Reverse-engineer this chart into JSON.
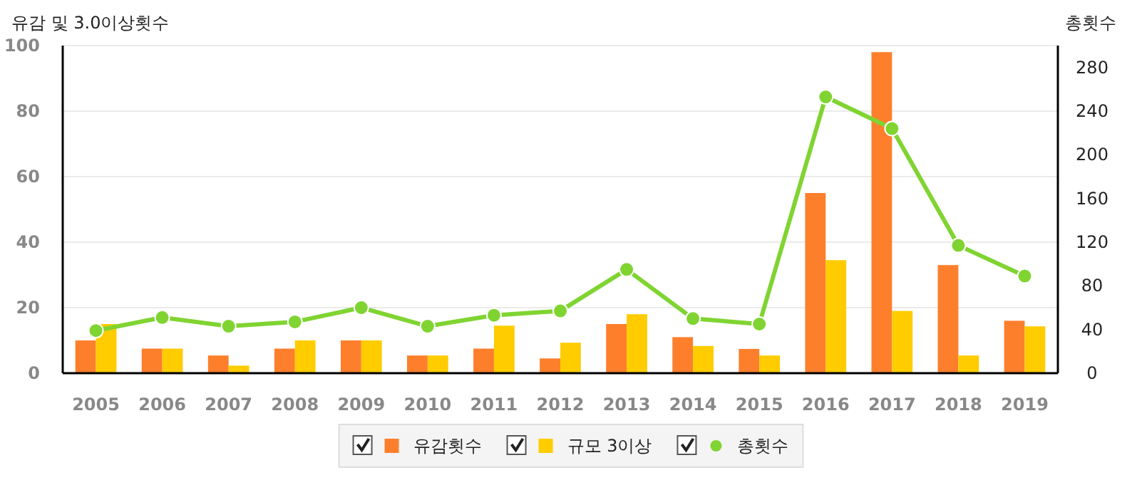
{
  "chart_data": {
    "type": "bar",
    "ylabel": "유감 및 3.0이상횟수",
    "y2label": "총횟수",
    "categories": [
      "2005",
      "2006",
      "2007",
      "2008",
      "2009",
      "2010",
      "2011",
      "2012",
      "2013",
      "2014",
      "2015",
      "2016",
      "2017",
      "2018",
      "2019"
    ],
    "series": [
      {
        "name": "유감횟수",
        "color": "#fd7f2c",
        "values": [
          10,
          7.5,
          5.4,
          7.5,
          10,
          5.4,
          7.5,
          4.5,
          15,
          11,
          7.4,
          55,
          98,
          33,
          16
        ]
      },
      {
        "name": "규모 3이상",
        "color": "#ffcc00",
        "values": [
          15,
          7.5,
          2.3,
          10,
          10,
          5.4,
          14.5,
          9.3,
          18,
          8.3,
          5.4,
          34.5,
          19,
          5.4,
          14.3
        ]
      },
      {
        "name": "총횟수",
        "type": "line",
        "axis": "y2",
        "color": "#80d432",
        "marker": "circle",
        "values": [
          39,
          51,
          43,
          47,
          60,
          43,
          53,
          57,
          95,
          50,
          45,
          253,
          224,
          117,
          89
        ]
      }
    ],
    "ylim": [
      0,
      100
    ],
    "yticks": [
      0,
      20,
      40,
      60,
      80,
      100
    ],
    "y2lim": [
      0,
      300
    ],
    "y2ticks": [
      0,
      40,
      80,
      120,
      160,
      200,
      240,
      280
    ],
    "grid": "y",
    "legend": "bottom"
  }
}
